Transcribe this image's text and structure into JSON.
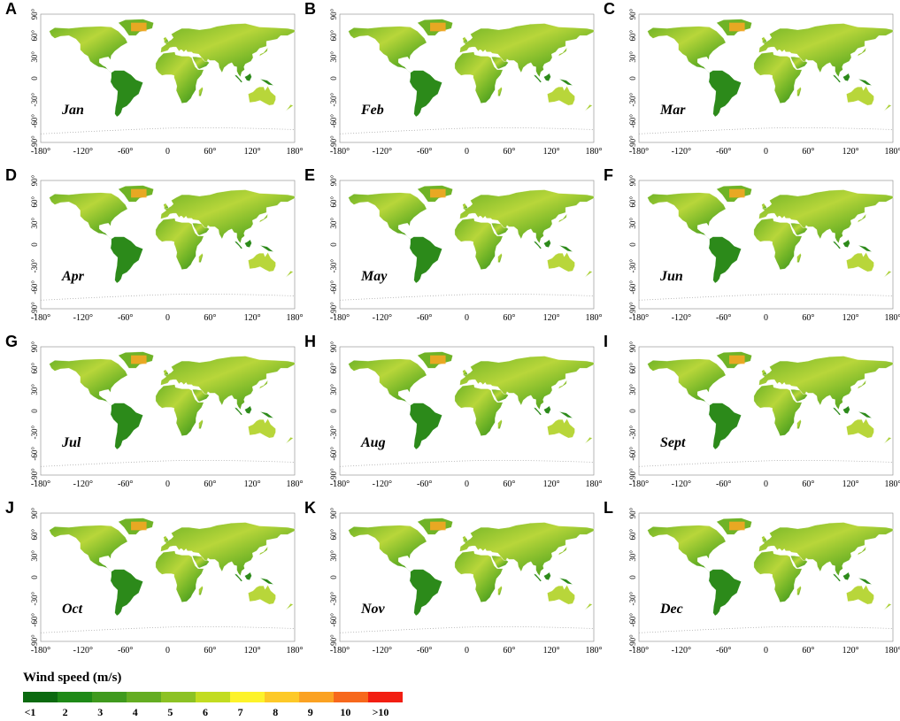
{
  "panels": [
    {
      "letter": "A",
      "month": "Jan"
    },
    {
      "letter": "B",
      "month": "Feb"
    },
    {
      "letter": "C",
      "month": "Mar"
    },
    {
      "letter": "D",
      "month": "Apr"
    },
    {
      "letter": "E",
      "month": "May"
    },
    {
      "letter": "F",
      "month": "Jun"
    },
    {
      "letter": "G",
      "month": "Jul"
    },
    {
      "letter": "H",
      "month": "Aug"
    },
    {
      "letter": "I",
      "month": "Sept"
    },
    {
      "letter": "J",
      "month": "Oct"
    },
    {
      "letter": "K",
      "month": "Nov"
    },
    {
      "letter": "L",
      "month": "Dec"
    }
  ],
  "axes": {
    "lat_ticks": [
      "90°",
      "60°",
      "30°",
      "0",
      "-30°",
      "-60°",
      "-90°"
    ],
    "lon_ticks": [
      "-180°",
      "-120°",
      "-60°",
      "0",
      "60°",
      "120°",
      "180°"
    ]
  },
  "legend": {
    "title": "Wind speed (m/s)",
    "labels": [
      "<1",
      "2",
      "3",
      "4",
      "5",
      "6",
      "7",
      "8",
      "9",
      "10",
      ">10"
    ],
    "colors": [
      "#0b6a10",
      "#1e8a17",
      "#3f9a1e",
      "#64ad22",
      "#8cc224",
      "#c2dc20",
      "#fdf32a",
      "#fdc928",
      "#fba222",
      "#f7681c",
      "#f21e12"
    ]
  },
  "map_colors": {
    "land_dark": "#2c8a1a",
    "land_mid": "#6fb326",
    "land_light": "#b8d63a",
    "high_wind": "#f5a623",
    "antarctica_outline": "#aaaaaa"
  }
}
